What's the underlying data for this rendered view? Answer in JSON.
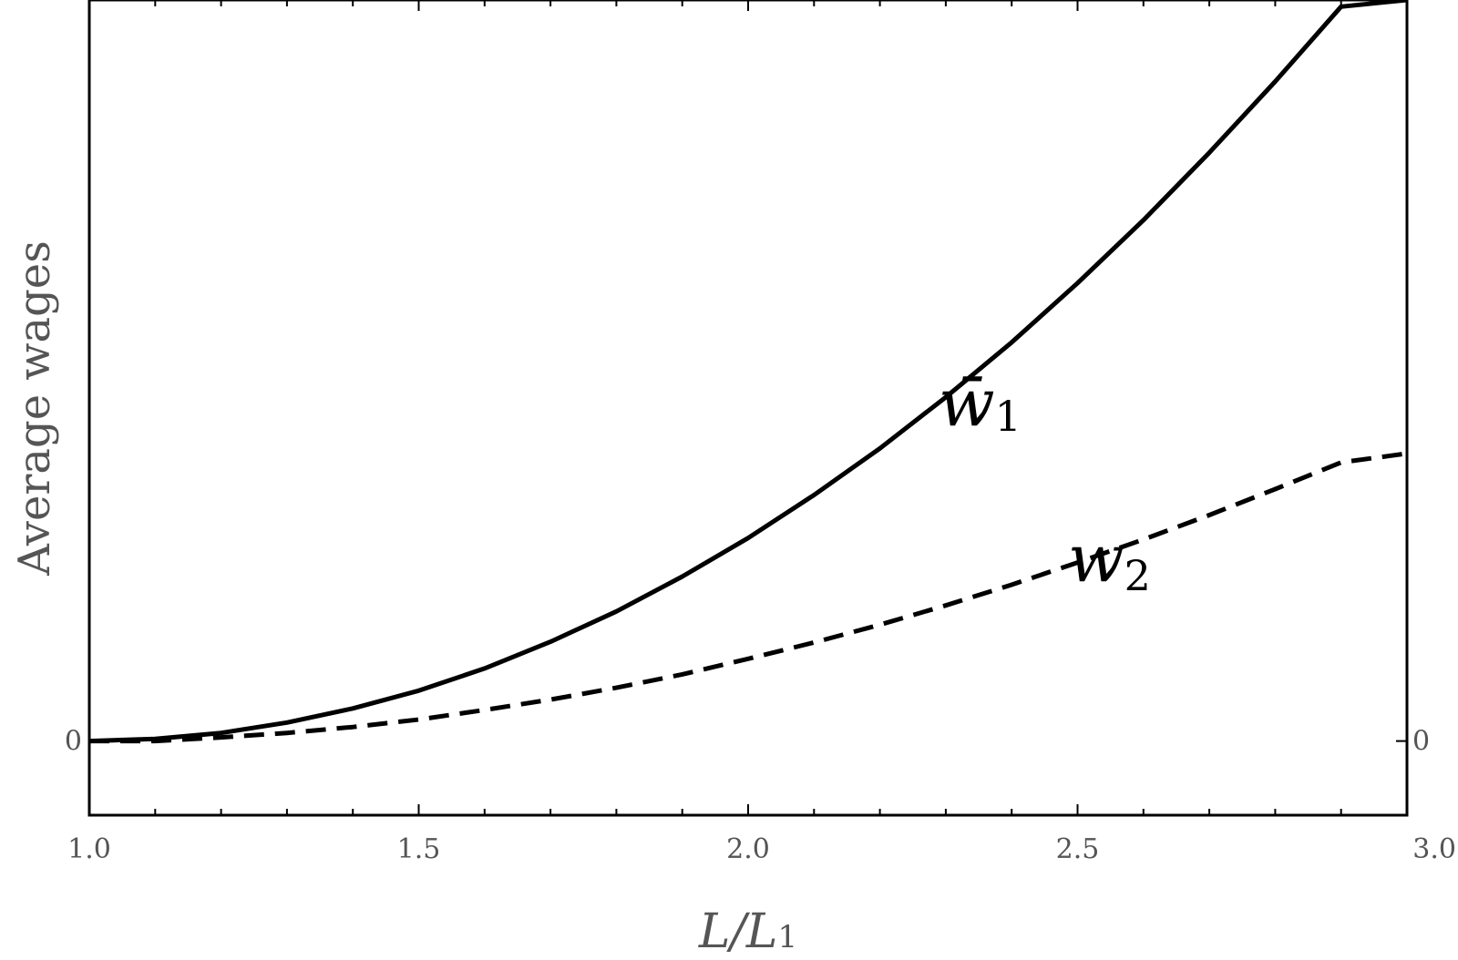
{
  "chart_data": {
    "type": "line",
    "xlabel": {
      "main": "L/L",
      "sub": "1"
    },
    "ylabel": "Average wages",
    "xlim": [
      1.0,
      3.0
    ],
    "ylim": [
      -0.1,
      1.0
    ],
    "x_ticks": [
      "1.0",
      "1.5",
      "2.0",
      "2.5",
      "3.0"
    ],
    "x_tick_values": [
      1.0,
      1.5,
      2.0,
      2.5,
      3.0
    ],
    "y_ticks": [
      "0"
    ],
    "y_tick_values": [
      0
    ],
    "grid": false,
    "x": [
      1.0,
      1.1,
      1.2,
      1.3,
      1.4,
      1.5,
      1.6,
      1.7,
      1.8,
      1.9,
      2.0,
      2.1,
      2.2,
      2.3,
      2.4,
      2.5,
      2.6,
      2.7,
      2.8,
      2.9,
      3.0
    ],
    "series": [
      {
        "name_main": "w̄",
        "name_sub": "1",
        "style": "solid",
        "values": [
          0.0,
          0.003,
          0.011,
          0.025,
          0.044,
          0.068,
          0.098,
          0.134,
          0.175,
          0.222,
          0.274,
          0.332,
          0.395,
          0.464,
          0.538,
          0.618,
          0.703,
          0.794,
          0.89,
          0.991,
          1.0
        ]
      },
      {
        "name_main": "w",
        "name_sub": "2",
        "style": "dashed",
        "values": [
          0.0,
          0.0,
          0.005,
          0.011,
          0.019,
          0.029,
          0.042,
          0.056,
          0.072,
          0.09,
          0.111,
          0.133,
          0.157,
          0.183,
          0.211,
          0.241,
          0.272,
          0.305,
          0.34,
          0.376,
          0.388
        ]
      }
    ]
  }
}
